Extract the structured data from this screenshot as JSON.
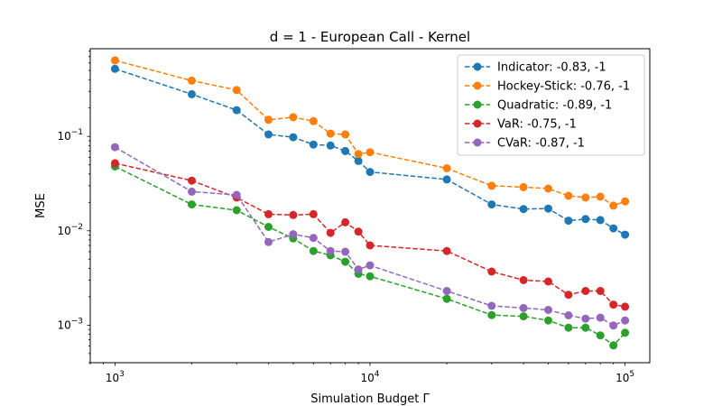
{
  "chart_data": {
    "type": "line",
    "title": "d = 1 - European Call - Kernel",
    "xlabel": "Simulation Budget Γ",
    "ylabel": "MSE",
    "xscale": "log",
    "yscale": "log",
    "xlim": [
      800,
      125000
    ],
    "ylim": [
      0.0004,
      0.85
    ],
    "x_ticks": [
      {
        "value": 1000,
        "base": "10",
        "exp": "3"
      },
      {
        "value": 10000,
        "base": "10",
        "exp": "4"
      },
      {
        "value": 100000,
        "base": "10",
        "exp": "5"
      }
    ],
    "y_ticks": [
      {
        "value": 0.001,
        "base": "10",
        "exp": "−3"
      },
      {
        "value": 0.01,
        "base": "10",
        "exp": "−2"
      },
      {
        "value": 0.1,
        "base": "10",
        "exp": "−1"
      }
    ],
    "grid": false,
    "legend_position": "top-right",
    "x": [
      1000,
      2000,
      3000,
      4000,
      5000,
      6000,
      7000,
      8000,
      9000,
      10000,
      20000,
      30000,
      40000,
      50000,
      60000,
      70000,
      80000,
      90000,
      100000
    ],
    "series": [
      {
        "name": "Indicator: -0.83, -1",
        "color": "#1f77b4",
        "values": [
          0.52,
          0.28,
          0.19,
          0.105,
          0.098,
          0.082,
          0.08,
          0.07,
          0.055,
          0.042,
          0.035,
          0.019,
          0.017,
          0.0172,
          0.0128,
          0.0133,
          0.013,
          0.0106,
          0.0091
        ]
      },
      {
        "name": "Hockey-Stick: -0.76, -1",
        "color": "#ff7f0e",
        "values": [
          0.64,
          0.39,
          0.31,
          0.15,
          0.16,
          0.145,
          0.107,
          0.105,
          0.065,
          0.068,
          0.046,
          0.03,
          0.029,
          0.028,
          0.0235,
          0.0225,
          0.023,
          0.0185,
          0.0205
        ]
      },
      {
        "name": "Quadratic: -0.89, -1",
        "color": "#2ca02c",
        "values": [
          0.048,
          0.019,
          0.0165,
          0.011,
          0.0083,
          0.0061,
          0.0055,
          0.0047,
          0.0035,
          0.0033,
          0.0019,
          0.00128,
          0.00124,
          0.00112,
          0.00094,
          0.00094,
          0.00078,
          0.00061,
          0.00083
        ]
      },
      {
        "name": "VaR: -0.75, -1",
        "color": "#d62728",
        "values": [
          0.052,
          0.034,
          0.0225,
          0.015,
          0.0147,
          0.015,
          0.0095,
          0.0123,
          0.0098,
          0.007,
          0.0061,
          0.0037,
          0.003,
          0.0029,
          0.0021,
          0.0023,
          0.0023,
          0.00165,
          0.00157
        ]
      },
      {
        "name": "CVaR: -0.87, -1",
        "color": "#9467bd",
        "values": [
          0.077,
          0.026,
          0.024,
          0.0076,
          0.0092,
          0.0084,
          0.0061,
          0.006,
          0.0039,
          0.0043,
          0.0023,
          0.0016,
          0.00152,
          0.00145,
          0.00127,
          0.00117,
          0.0012,
          0.00099,
          0.00112
        ]
      }
    ]
  }
}
